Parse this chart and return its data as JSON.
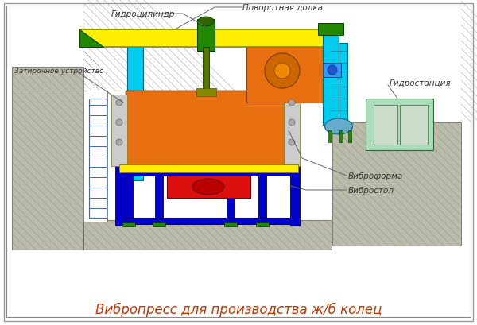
{
  "bg_color": "#ffffff",
  "title": "Вибропресс для производства ж/б колец",
  "title_color": "#cc3300",
  "title_fontsize": 12,
  "labels": {
    "gidrosilindr": "Гидроцилиндр",
    "povorotnaya": "Поворотная долка",
    "zatiroch": "Затирочное устройство",
    "gidrostanciya": "Гидростанция",
    "vibroforma": "Виброформа",
    "vibrostol": "Вибростол"
  },
  "colors": {
    "yellow": "#FFEE00",
    "cyan": "#00CCEE",
    "cyan_light": "#88DDEE",
    "orange": "#E87010",
    "green": "#228800",
    "blue": "#0000CC",
    "red": "#DD1010",
    "concrete": "#BBBBAA",
    "concrete_dark": "#999988",
    "white": "#FFFFFF",
    "light_green": "#AADDBB",
    "light_blue": "#3399FF",
    "gray_frame": "#AAAAAA"
  }
}
